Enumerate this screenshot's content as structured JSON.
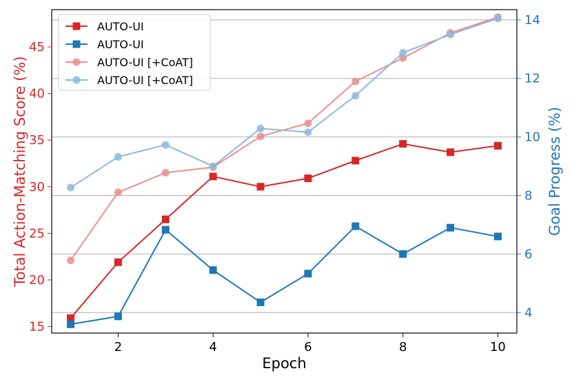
{
  "chart_data": {
    "type": "line",
    "x": [
      1,
      2,
      3,
      4,
      5,
      6,
      7,
      8,
      9,
      10
    ],
    "xlabel": "Epoch",
    "ylabel_left": "Total Action-Matching Score (%)",
    "ylabel_right": "Goal Progress (%)",
    "x_range": [
      0.6,
      10.4
    ],
    "ylim_left": [
      14.3,
      49.0
    ],
    "ylim_right": [
      3.3,
      14.35
    ],
    "x_ticks": [
      "2",
      "4",
      "6",
      "8",
      "10"
    ],
    "y_ticks_left": [
      "15",
      "20",
      "25",
      "30",
      "35",
      "40",
      "45"
    ],
    "y_ticks_right": [
      "4",
      "6",
      "8",
      "10",
      "12",
      "14"
    ],
    "grid": "horizontal lines at right-axis ticks",
    "legend_position": "top-left",
    "colors": {
      "left_axis": "#d62728",
      "right_axis": "#1f77b4",
      "light_red": "#e88f8f",
      "light_blue": "#8fb9dc",
      "grid": "#b0b0b0"
    },
    "series": [
      {
        "name": "AUTO-UI",
        "axis": "left",
        "marker": "square",
        "color": "#d62728",
        "values": [
          15.9,
          21.9,
          26.5,
          31.1,
          30.0,
          30.9,
          32.8,
          34.6,
          33.7,
          34.4
        ]
      },
      {
        "name": "AUTO-UI",
        "axis": "right",
        "marker": "square",
        "color": "#1f77b4",
        "values": [
          3.6,
          3.87,
          6.83,
          5.45,
          4.35,
          5.33,
          6.95,
          6.0,
          6.9,
          6.6
        ]
      },
      {
        "name": "AUTO-UI [+CoAT]",
        "axis": "left",
        "marker": "circle",
        "color": "#e88f8f",
        "values": [
          22.1,
          29.4,
          31.5,
          32.1,
          35.4,
          36.8,
          41.3,
          43.8,
          46.5,
          48.2
        ]
      },
      {
        "name": "AUTO-UI [+CoAT]",
        "axis": "right",
        "marker": "circle",
        "color": "#8fb9dc",
        "values": [
          8.27,
          9.32,
          9.73,
          9.0,
          10.29,
          10.16,
          11.41,
          12.88,
          13.5,
          14.05
        ]
      }
    ]
  }
}
